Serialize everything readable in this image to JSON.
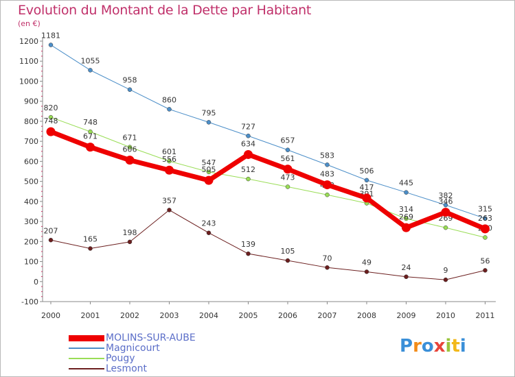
{
  "title": "Evolution du Montant de la Dette par Habitant",
  "unit_label": "(en €)",
  "logo_text": "Proxiti",
  "chart_data": {
    "type": "line",
    "ylim": [
      -100,
      1200
    ],
    "ytick_step": 100,
    "x": [
      "2000",
      "2001",
      "2002",
      "2003",
      "2004",
      "2005",
      "2006",
      "2007",
      "2008",
      "2009",
      "2010",
      "2011"
    ],
    "grid": false,
    "legend_position": "bottom-left",
    "series": [
      {
        "name": "Magnicourt",
        "color": "#4b8ec8",
        "width": 1,
        "values": [
          1181,
          1055,
          958,
          860,
          795,
          727,
          657,
          583,
          506,
          445,
          382,
          315
        ]
      },
      {
        "name": "Pougy",
        "color": "#99dd55",
        "width": 1,
        "values": [
          820,
          748,
          671,
          601,
          547,
          512,
          473,
          433,
          391,
          314,
          269,
          220
        ]
      },
      {
        "name": "Lesmont",
        "color": "#6b1e1e",
        "width": 1,
        "values": [
          207,
          165,
          198,
          357,
          243,
          139,
          105,
          70,
          49,
          24,
          9,
          56
        ]
      },
      {
        "name": "MOLINS-SUR-AUBE",
        "color": "#ee0000",
        "width": 7,
        "values": [
          748,
          671,
          606,
          556,
          505,
          634,
          561,
          483,
          417,
          269,
          346,
          263
        ]
      }
    ],
    "legend_order": [
      "MOLINS-SUR-AUBE",
      "Magnicourt",
      "Pougy",
      "Lesmont"
    ]
  }
}
